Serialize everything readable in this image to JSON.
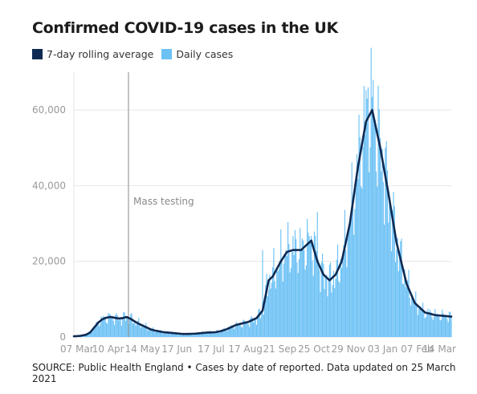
{
  "title": "Confirmed COVID-19 cases in the UK",
  "source": "SOURCE: Public Health England • Cases by date of reported. Data updated on 25 March 2021",
  "chart_data": {
    "type": "bar",
    "title": "Confirmed COVID-19 cases in the UK",
    "xlabel": "",
    "ylabel": "",
    "ylim": [
      0,
      70000
    ],
    "y_ticks": [
      0,
      20000,
      40000,
      60000
    ],
    "y_tick_labels": [
      "0",
      "20,000",
      "40,000",
      "60,000"
    ],
    "x_tick_labels": [
      "07 Mar",
      "10 Apr",
      "14 May",
      "17 Jun",
      "17 Jul",
      "17 Aug",
      "21 Sep",
      "25 Oct",
      "29 Nov",
      "03 Jan",
      "07 Feb",
      "14 Mar"
    ],
    "grid": true,
    "legend_position": "top-left",
    "colors": {
      "rolling_average": "#0e2a52",
      "daily_cases": "#6cc1f5",
      "annotation": "#8a8a8a",
      "grid": "#e6e6e6",
      "axis_text": "#9a9a9a"
    },
    "annotation": {
      "label": "Mass testing",
      "x": 16
    },
    "series": [
      {
        "name": "7-day rolling average",
        "kind": "line",
        "x": [
          0,
          2,
          3,
          4,
          5,
          6,
          7,
          8,
          9,
          10,
          11,
          12,
          13,
          14,
          15,
          16,
          17,
          18,
          19,
          20,
          21,
          22,
          23,
          24,
          25,
          26,
          27,
          28,
          29,
          30,
          31,
          32,
          33,
          34,
          35,
          36,
          37,
          38,
          39,
          40,
          41,
          42,
          43,
          44,
          45,
          46,
          47,
          48,
          49,
          50,
          51,
          52,
          53,
          54,
          55,
          56,
          57,
          58,
          59,
          60,
          61,
          62,
          63,
          64,
          65
        ],
        "values": [
          200,
          300,
          600,
          1200,
          2500,
          3800,
          4700,
          5100,
          5300,
          5100,
          4900,
          5000,
          5300,
          4800,
          4100,
          3500,
          3000,
          2500,
          2000,
          1700,
          1500,
          1300,
          1200,
          1100,
          1000,
          900,
          800,
          800,
          850,
          900,
          1000,
          1100,
          1200,
          1200,
          1300,
          1500,
          2000,
          3200,
          4000,
          5000,
          7000,
          15000,
          16000,
          20000,
          22500,
          23000,
          23000,
          25500,
          20000,
          16500,
          15000,
          16500,
          20000,
          30000,
          45000,
          57000,
          60000,
          50000,
          38000,
          25000,
          14000,
          9000,
          6500,
          5800,
          5400
        ],
        "x_positions_days": [
          0,
          6,
          12,
          16,
          20,
          24,
          28,
          32,
          36,
          40,
          44,
          48,
          52,
          56,
          60,
          64,
          68,
          72,
          76,
          80,
          84,
          88,
          92,
          96,
          100,
          104,
          108,
          112,
          116,
          120,
          124,
          128,
          132,
          136,
          140,
          144,
          150,
          160,
          172,
          180,
          186,
          192,
          196,
          204,
          210,
          216,
          224,
          234,
          240,
          246,
          252,
          258,
          264,
          272,
          280,
          288,
          294,
          302,
          310,
          318,
          328,
          336,
          346,
          356,
          372
        ]
      },
      {
        "name": "Daily cases",
        "kind": "bar",
        "derived_from_average": true
      }
    ]
  },
  "legend": [
    {
      "label": "7-day rolling average",
      "color": "#0e2a52"
    },
    {
      "label": "Daily cases",
      "color": "#6cc1f5"
    }
  ]
}
